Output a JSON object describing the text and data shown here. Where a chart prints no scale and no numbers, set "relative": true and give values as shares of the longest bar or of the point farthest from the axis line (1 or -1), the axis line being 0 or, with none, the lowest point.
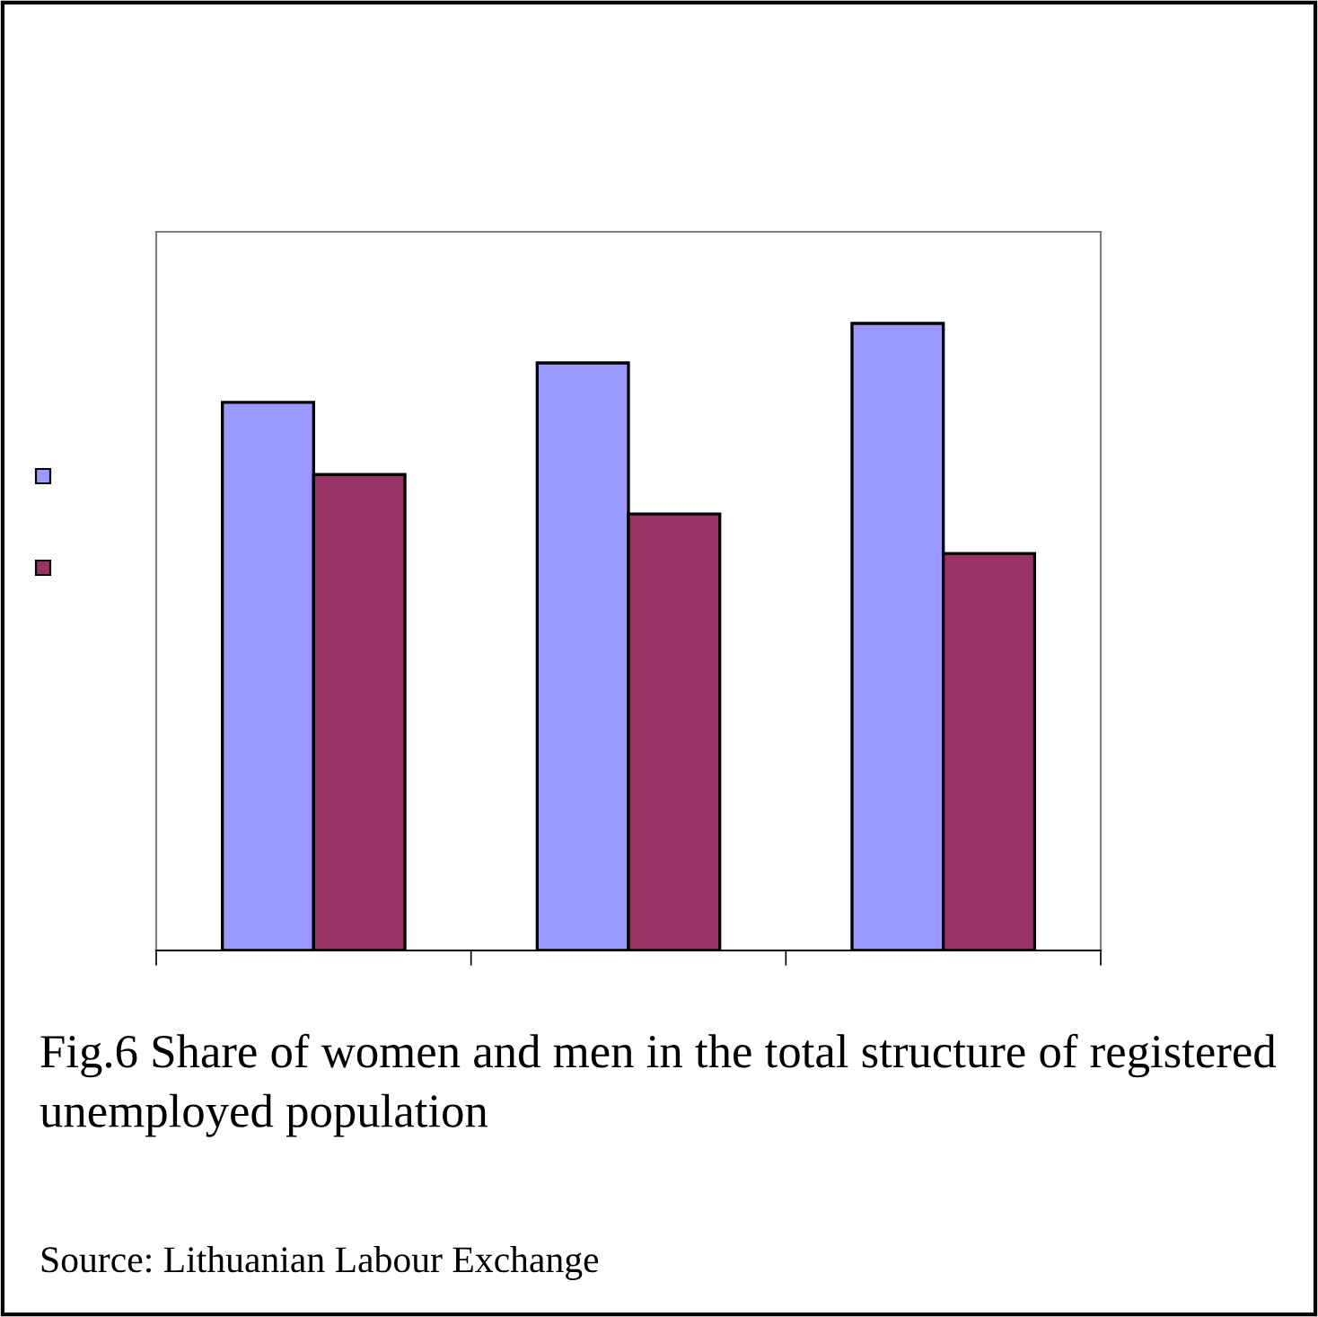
{
  "chart_data": {
    "type": "bar",
    "relative": true,
    "categories": [
      null,
      null,
      null
    ],
    "series": [
      {
        "color": "#9999ff",
        "values": [
          0.874,
          0.937,
          1
        ]
      },
      {
        "color": "#993366",
        "values": [
          0.759,
          0.696,
          0.633
        ]
      }
    ],
    "grid": false,
    "legend": false,
    "annotations": [
      "Fig.6 Share of women and men in the total structure of registered unemployed population",
      "Source: Lithuanian Labour Exchange"
    ]
  }
}
